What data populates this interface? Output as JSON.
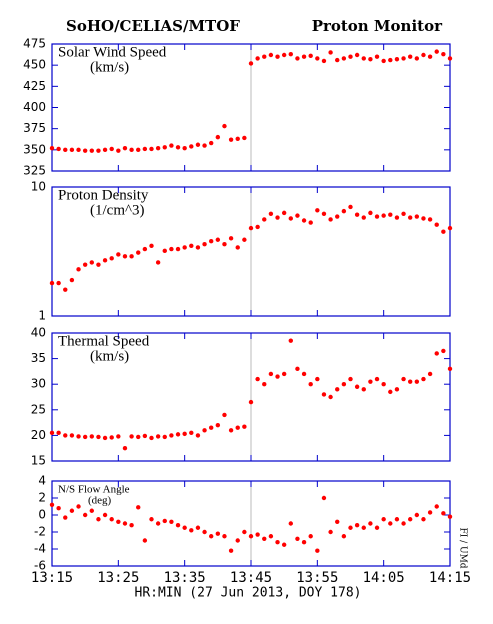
{
  "header": {
    "left": "SoHO/CELIAS/MTOF",
    "right": "Proton Monitor",
    "x_label": "HR:MIN (27 Jun 2013, DOY 178)",
    "credit": "FI / UMd"
  },
  "chart_data": [
    {
      "type": "scatter",
      "title": "Solar Wind Speed",
      "unit": "(km/s)",
      "color": "#ff0000",
      "vline": 30,
      "x": [
        0,
        1,
        2,
        3,
        4,
        5,
        6,
        7,
        8,
        9,
        10,
        11,
        12,
        13,
        14,
        15,
        16,
        17,
        18,
        19,
        20,
        21,
        22,
        23,
        24,
        25,
        26,
        27,
        28,
        29,
        30,
        31,
        32,
        33,
        34,
        35,
        36,
        37,
        38,
        39,
        40,
        41,
        42,
        43,
        44,
        45,
        46,
        47,
        48,
        49,
        50,
        51,
        52,
        53,
        54,
        55,
        56,
        57,
        58,
        59,
        60
      ],
      "values": [
        352,
        351,
        350,
        350,
        350,
        349,
        349,
        349,
        350,
        351,
        349,
        352,
        350,
        350,
        351,
        351,
        352,
        353,
        355,
        353,
        352,
        354,
        356,
        355,
        358,
        365,
        378,
        362,
        363,
        364,
        452,
        458,
        460,
        462,
        460,
        462,
        463,
        458,
        460,
        461,
        458,
        455,
        465,
        456,
        458,
        460,
        462,
        458,
        457,
        460,
        455,
        456,
        457,
        458,
        460,
        458,
        462,
        460,
        466,
        463,
        458
      ],
      "xlim": [
        0,
        60
      ],
      "xticks": [
        0,
        10,
        20,
        30,
        40,
        50,
        60
      ],
      "ylim": [
        325,
        475
      ],
      "yticks": [
        325,
        350,
        375,
        400,
        425,
        450,
        475
      ]
    },
    {
      "type": "scatter",
      "title": "Proton Density",
      "unit": "(1/cm^3)",
      "color": "#ff0000",
      "vline": 30,
      "log_scale": true,
      "x": [
        0,
        1,
        2,
        3,
        4,
        5,
        6,
        7,
        8,
        9,
        10,
        11,
        12,
        13,
        14,
        15,
        16,
        17,
        18,
        19,
        20,
        21,
        22,
        23,
        24,
        25,
        26,
        27,
        28,
        29,
        30,
        31,
        32,
        33,
        34,
        35,
        36,
        37,
        38,
        39,
        40,
        41,
        42,
        43,
        44,
        45,
        46,
        47,
        48,
        49,
        50,
        51,
        52,
        53,
        54,
        55,
        56,
        57,
        58,
        59,
        60
      ],
      "values": [
        1.8,
        1.8,
        1.6,
        1.9,
        2.3,
        2.5,
        2.6,
        2.5,
        2.7,
        2.8,
        3.0,
        2.9,
        2.9,
        3.1,
        3.3,
        3.5,
        2.6,
        3.2,
        3.3,
        3.3,
        3.4,
        3.5,
        3.4,
        3.6,
        3.8,
        3.9,
        3.6,
        4.0,
        3.4,
        3.9,
        4.8,
        4.9,
        5.6,
        6.2,
        5.8,
        6.3,
        5.7,
        6.0,
        5.5,
        5.3,
        6.6,
        6.2,
        5.6,
        5.9,
        6.5,
        7.0,
        6.1,
        5.8,
        6.3,
        5.9,
        6.0,
        6.1,
        5.8,
        6.2,
        5.8,
        5.9,
        5.7,
        5.6,
        5.1,
        4.5,
        4.8
      ],
      "xlim": [
        0,
        60
      ],
      "xticks": [
        0,
        10,
        20,
        30,
        40,
        50,
        60
      ],
      "ylim": [
        1,
        10
      ],
      "yticks": [
        1,
        10
      ]
    },
    {
      "type": "scatter",
      "title": "Thermal Speed",
      "unit": "(km/s)",
      "color": "#ff0000",
      "vline": 30,
      "x": [
        0,
        1,
        2,
        3,
        4,
        5,
        6,
        7,
        8,
        9,
        10,
        11,
        12,
        13,
        14,
        15,
        16,
        17,
        18,
        19,
        20,
        21,
        22,
        23,
        24,
        25,
        26,
        27,
        28,
        29,
        30,
        31,
        32,
        33,
        34,
        35,
        36,
        37,
        38,
        39,
        40,
        41,
        42,
        43,
        44,
        45,
        46,
        47,
        48,
        49,
        50,
        51,
        52,
        53,
        54,
        55,
        56,
        57,
        58,
        59,
        60
      ],
      "values": [
        20.5,
        20.5,
        20,
        20,
        19.8,
        19.7,
        19.8,
        19.7,
        19.5,
        19.6,
        19.8,
        17.5,
        19.8,
        19.7,
        19.9,
        19.5,
        19.8,
        19.7,
        20,
        20.2,
        20.3,
        20.5,
        20,
        21,
        21.5,
        22,
        24,
        21,
        21.5,
        21.7,
        26.5,
        31,
        30,
        32,
        31.5,
        32,
        38.5,
        33,
        32,
        30,
        31,
        28,
        27.5,
        29,
        30,
        31,
        29.5,
        29,
        30.5,
        31,
        30,
        28.5,
        29,
        31,
        30.5,
        30.5,
        31,
        32,
        36,
        36.5,
        33
      ],
      "xlim": [
        0,
        60
      ],
      "xticks": [
        0,
        10,
        20,
        30,
        40,
        50,
        60
      ],
      "ylim": [
        15,
        40
      ],
      "yticks": [
        15,
        20,
        25,
        30,
        35,
        40
      ]
    },
    {
      "type": "scatter",
      "title": "N/S Flow Angle",
      "unit": "(deg)",
      "color": "#ff0000",
      "vline": 30,
      "x": [
        0,
        1,
        2,
        3,
        4,
        5,
        6,
        7,
        8,
        9,
        10,
        11,
        12,
        13,
        14,
        15,
        16,
        17,
        18,
        19,
        20,
        21,
        22,
        23,
        24,
        25,
        26,
        27,
        28,
        29,
        30,
        31,
        32,
        33,
        34,
        35,
        36,
        37,
        38,
        39,
        40,
        41,
        42,
        43,
        44,
        45,
        46,
        47,
        48,
        49,
        50,
        51,
        52,
        53,
        54,
        55,
        56,
        57,
        58,
        59,
        60
      ],
      "values": [
        1.2,
        0.8,
        -0.3,
        0.5,
        1,
        0,
        0.5,
        -0.5,
        0,
        -0.5,
        -0.8,
        -1,
        -1.2,
        0.9,
        -3,
        -0.5,
        -1,
        -0.7,
        -0.8,
        -1.2,
        -1.5,
        -1.8,
        -1.5,
        -2,
        -2.5,
        -2.2,
        -2.5,
        -4.2,
        -3,
        -2,
        -2.5,
        -2.3,
        -2.8,
        -2.5,
        -3.2,
        -3.5,
        -1,
        -2.8,
        -3.2,
        -2.5,
        -4.2,
        2,
        -2,
        -0.8,
        -2.5,
        -1.5,
        -1.2,
        -1.5,
        -1,
        -1.5,
        -0.5,
        -1,
        -0.5,
        -1,
        -0.5,
        0,
        -0.5,
        0.3,
        1,
        0.2,
        -0.2
      ],
      "xlim": [
        0,
        60
      ],
      "xticks": [
        {
          "value": 0,
          "label": "13:15"
        },
        {
          "value": 10,
          "label": "13:25"
        },
        {
          "value": 20,
          "label": "13:35"
        },
        {
          "value": 30,
          "label": "13:45"
        },
        {
          "value": 40,
          "label": "13:55"
        },
        {
          "value": 50,
          "label": "14:05"
        },
        {
          "value": 60,
          "label": "14:15"
        }
      ],
      "ylim": [
        -6,
        4
      ],
      "yticks": [
        -6,
        -4,
        -2,
        0,
        2,
        4
      ]
    }
  ]
}
